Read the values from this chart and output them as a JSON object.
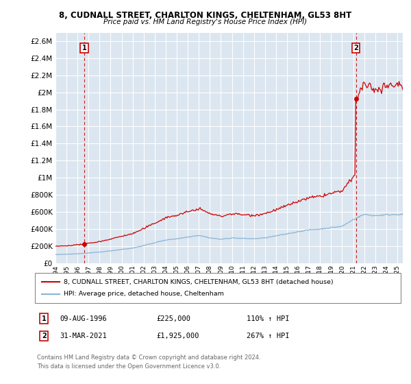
{
  "title": "8, CUDNALL STREET, CHARLTON KINGS, CHELTENHAM, GL53 8HT",
  "subtitle": "Price paid vs. HM Land Registry's House Price Index (HPI)",
  "legend_line1": "8, CUDNALL STREET, CHARLTON KINGS, CHELTENHAM, GL53 8HT (detached house)",
  "legend_line2": "HPI: Average price, detached house, Cheltenham",
  "annotation1_date": "09-AUG-1996",
  "annotation1_price": "£225,000",
  "annotation1_hpi": "110% ↑ HPI",
  "annotation2_date": "31-MAR-2021",
  "annotation2_price": "£1,925,000",
  "annotation2_hpi": "267% ↑ HPI",
  "footnote1": "Contains HM Land Registry data © Crown copyright and database right 2024.",
  "footnote2": "This data is licensed under the Open Government Licence v3.0.",
  "line_color": "#cc0000",
  "hpi_color": "#8ab4d4",
  "background_color": "#ffffff",
  "plot_bg_color": "#dce6f0",
  "grid_color": "#ffffff",
  "ylim": [
    0,
    2700000
  ],
  "yticks": [
    0,
    200000,
    400000,
    600000,
    800000,
    1000000,
    1200000,
    1400000,
    1600000,
    1800000,
    2000000,
    2200000,
    2400000,
    2600000
  ],
  "sale1_x": 1996.615,
  "sale1_y": 225000,
  "sale2_x": 2021.247,
  "sale2_y": 1925000,
  "xmin": 1994.0,
  "xmax": 2025.5
}
